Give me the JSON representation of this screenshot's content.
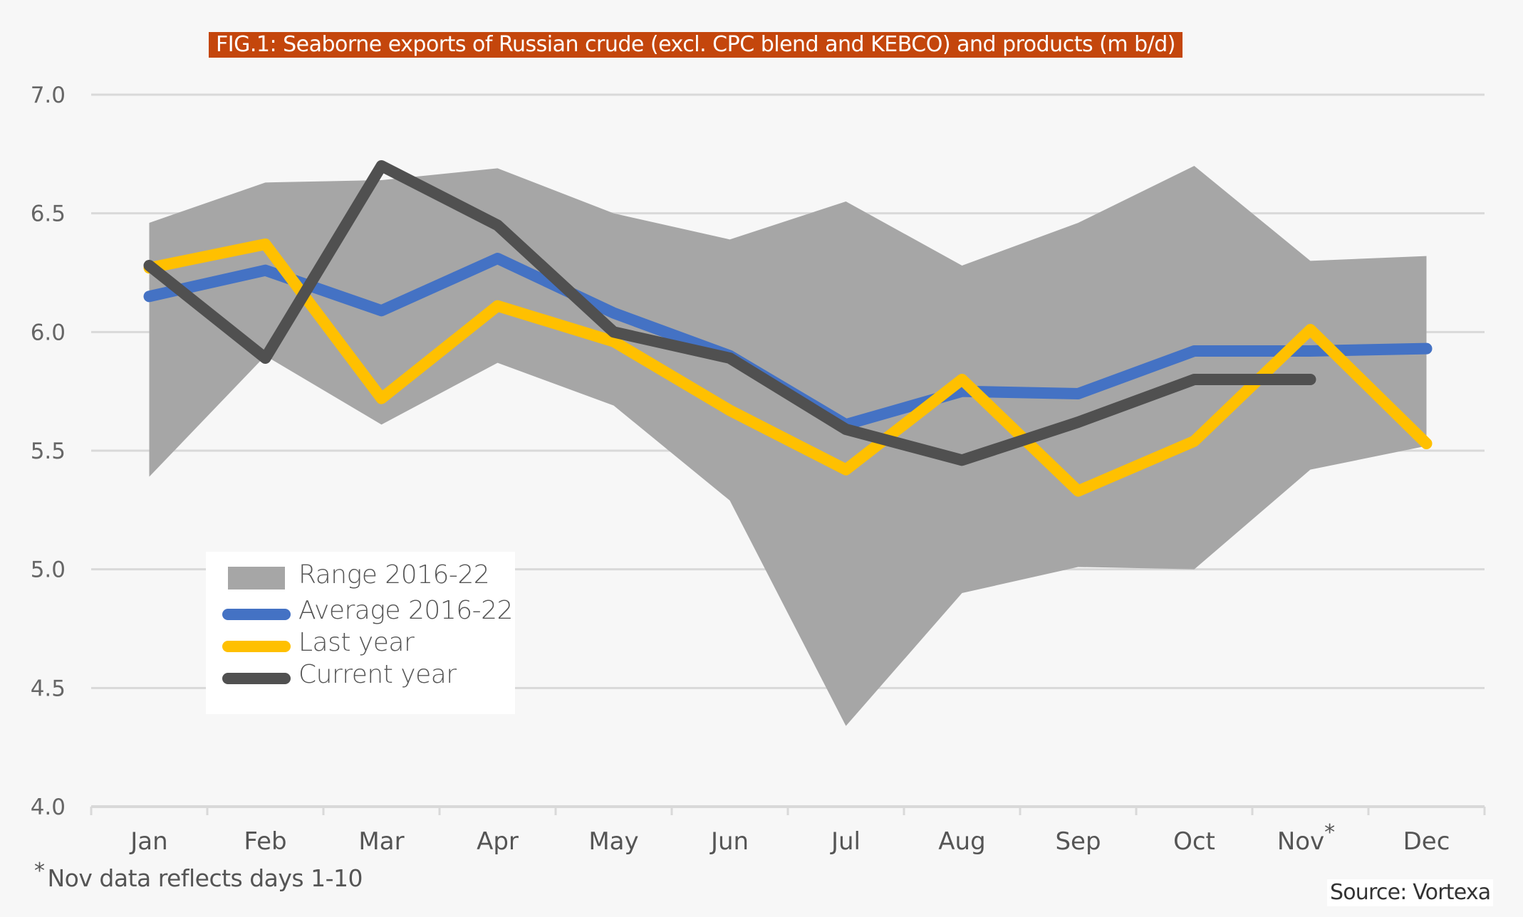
{
  "title": "FIG.1: Seaborne exports of Russian crude (excl. CPC blend and KEBCO) and products (m b/d)",
  "footnote": {
    "marker": "*",
    "text": "Nov data reflects days 1-10"
  },
  "source": "Source: Vortexa",
  "colors": {
    "title_bg": "#c4460c",
    "range": "#a6a6a6",
    "average": "#4472c4",
    "last_year": "#ffc000",
    "current_year": "#505050",
    "gridline": "#d9d9d9",
    "background": "#f7f7f7"
  },
  "chart_data": {
    "type": "line",
    "title": "FIG.1: Seaborne exports of Russian crude (excl. CPC blend and KEBCO) and products (m b/d)",
    "xlabel": "",
    "ylabel": "",
    "categories": [
      "Jan",
      "Feb",
      "Mar",
      "Apr",
      "May",
      "Jun",
      "Jul",
      "Aug",
      "Sep",
      "Oct",
      "Nov*",
      "Dec"
    ],
    "ylim": [
      4.0,
      7.0
    ],
    "yticks": [
      "4.0",
      "4.5",
      "5.0",
      "5.5",
      "6.0",
      "6.5",
      "7.0"
    ],
    "ytick_values": [
      4.0,
      4.5,
      5.0,
      5.5,
      6.0,
      6.5,
      7.0
    ],
    "grid": true,
    "legend_position": "bottom-left",
    "range": {
      "name": "Range 2016-22",
      "low": [
        5.39,
        5.9,
        5.61,
        5.87,
        5.69,
        5.29,
        4.34,
        4.9,
        5.01,
        5.0,
        5.42,
        5.52
      ],
      "high": [
        6.46,
        6.63,
        6.64,
        6.69,
        6.5,
        6.39,
        6.55,
        6.28,
        6.46,
        6.7,
        6.3,
        6.32
      ]
    },
    "series": [
      {
        "name": "Average 2016-22",
        "values": [
          6.15,
          6.26,
          6.09,
          6.31,
          6.08,
          5.9,
          5.61,
          5.75,
          5.74,
          5.92,
          5.92,
          5.93
        ]
      },
      {
        "name": "Last year",
        "values": [
          6.27,
          6.37,
          5.72,
          6.11,
          5.96,
          5.67,
          5.42,
          5.8,
          5.33,
          5.54,
          6.01,
          5.53
        ]
      },
      {
        "name": "Current year",
        "values": [
          6.28,
          5.89,
          6.7,
          6.45,
          6.0,
          5.89,
          5.59,
          5.46,
          5.62,
          5.8,
          5.8,
          null
        ]
      }
    ]
  },
  "legend": [
    {
      "label": "Range 2016-22",
      "kind": "area"
    },
    {
      "label": "Average 2016-22",
      "kind": "line"
    },
    {
      "label": "Last year",
      "kind": "line"
    },
    {
      "label": "Current year",
      "kind": "line"
    }
  ]
}
